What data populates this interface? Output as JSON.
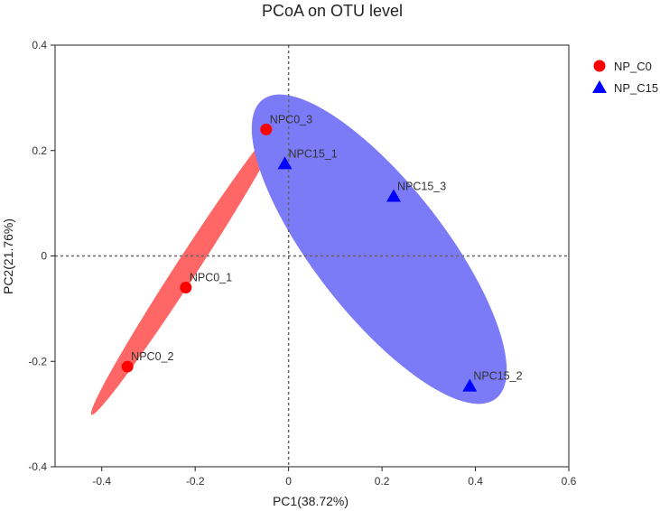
{
  "chart_data": {
    "type": "scatter",
    "title": "PCoA on OTU level",
    "xlabel": "PC1(38.72%)",
    "ylabel": "PC2(21.76%)",
    "xlim": [
      -0.5,
      0.6
    ],
    "ylim": [
      -0.4,
      0.4
    ],
    "x_ticks": [
      -0.4,
      -0.2,
      0,
      0.2,
      0.4,
      0.6
    ],
    "x_tick_labels": [
      "-0.4",
      "-0.2",
      "0",
      "0.2",
      "0.4",
      "0.6"
    ],
    "y_ticks": [
      -0.4,
      -0.2,
      0,
      0.2,
      0.4
    ],
    "y_tick_labels": [
      "-0.4",
      "-0.2",
      "0",
      "0.2",
      "0.4"
    ],
    "grid": false,
    "reference_lines": {
      "x": 0,
      "y": 0,
      "style": "dotted"
    },
    "legend_position": "top-right outside",
    "series": [
      {
        "name": "NP_C0",
        "marker": "circle",
        "color": "#ff0000",
        "ellipse_color": "#ff6666",
        "points": [
          {
            "label": "NPC0_1",
            "x": -0.22,
            "y": -0.06
          },
          {
            "label": "NPC0_2",
            "x": -0.345,
            "y": -0.21
          },
          {
            "label": "NPC0_3",
            "x": -0.048,
            "y": 0.24
          }
        ]
      },
      {
        "name": "NP_C15",
        "marker": "triangle",
        "color": "#0000ff",
        "ellipse_color": "#7b7bf7",
        "points": [
          {
            "label": "NPC15_1",
            "x": -0.008,
            "y": 0.175
          },
          {
            "label": "NPC15_2",
            "x": 0.388,
            "y": -0.247
          },
          {
            "label": "NPC15_3",
            "x": 0.225,
            "y": 0.113
          }
        ]
      }
    ]
  }
}
